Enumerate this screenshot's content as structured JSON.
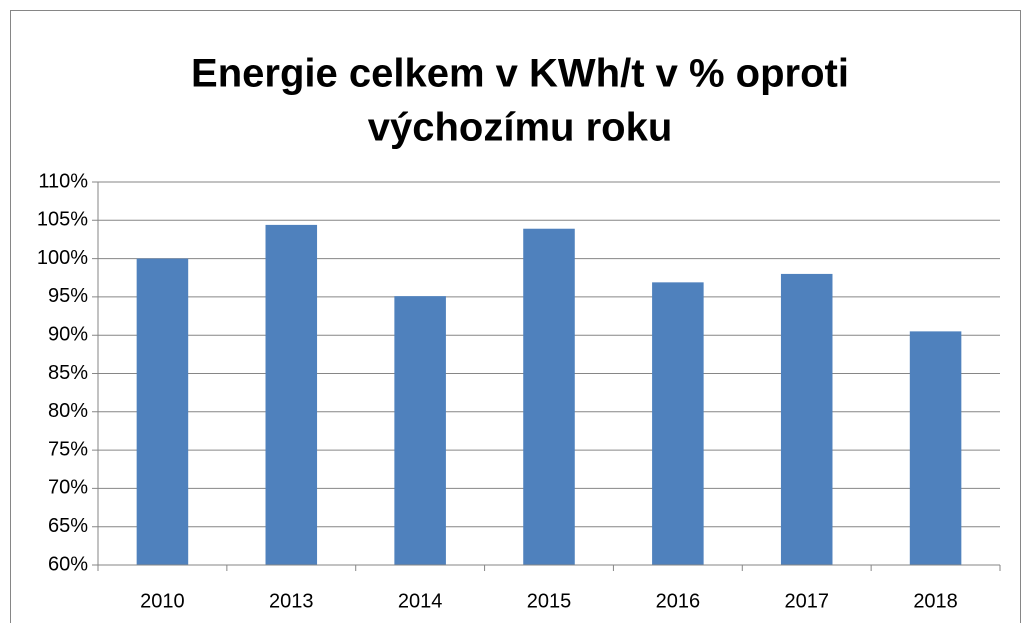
{
  "chart_data": {
    "type": "bar",
    "title": [
      "Energie celkem v KWh/t v % oproti",
      "výchozímu roku"
    ],
    "categories": [
      "2010",
      "2013",
      "2014",
      "2015",
      "2016",
      "2017",
      "2018"
    ],
    "values": [
      100,
      104.4,
      95.1,
      103.9,
      96.9,
      98.0,
      90.5
    ],
    "color": "#4f81bd",
    "ylim": [
      60,
      110
    ],
    "yticks": [
      {
        "value": 60,
        "label": "60%"
      },
      {
        "value": 65,
        "label": "65%"
      },
      {
        "value": 70,
        "label": "70%"
      },
      {
        "value": 75,
        "label": "75%"
      },
      {
        "value": 80,
        "label": "80%"
      },
      {
        "value": 85,
        "label": "85%"
      },
      {
        "value": 90,
        "label": "90%"
      },
      {
        "value": 95,
        "label": "95%"
      },
      {
        "value": 100,
        "label": "100%"
      },
      {
        "value": 105,
        "label": "105%"
      },
      {
        "value": 110,
        "label": "110%"
      }
    ],
    "grid": true
  }
}
